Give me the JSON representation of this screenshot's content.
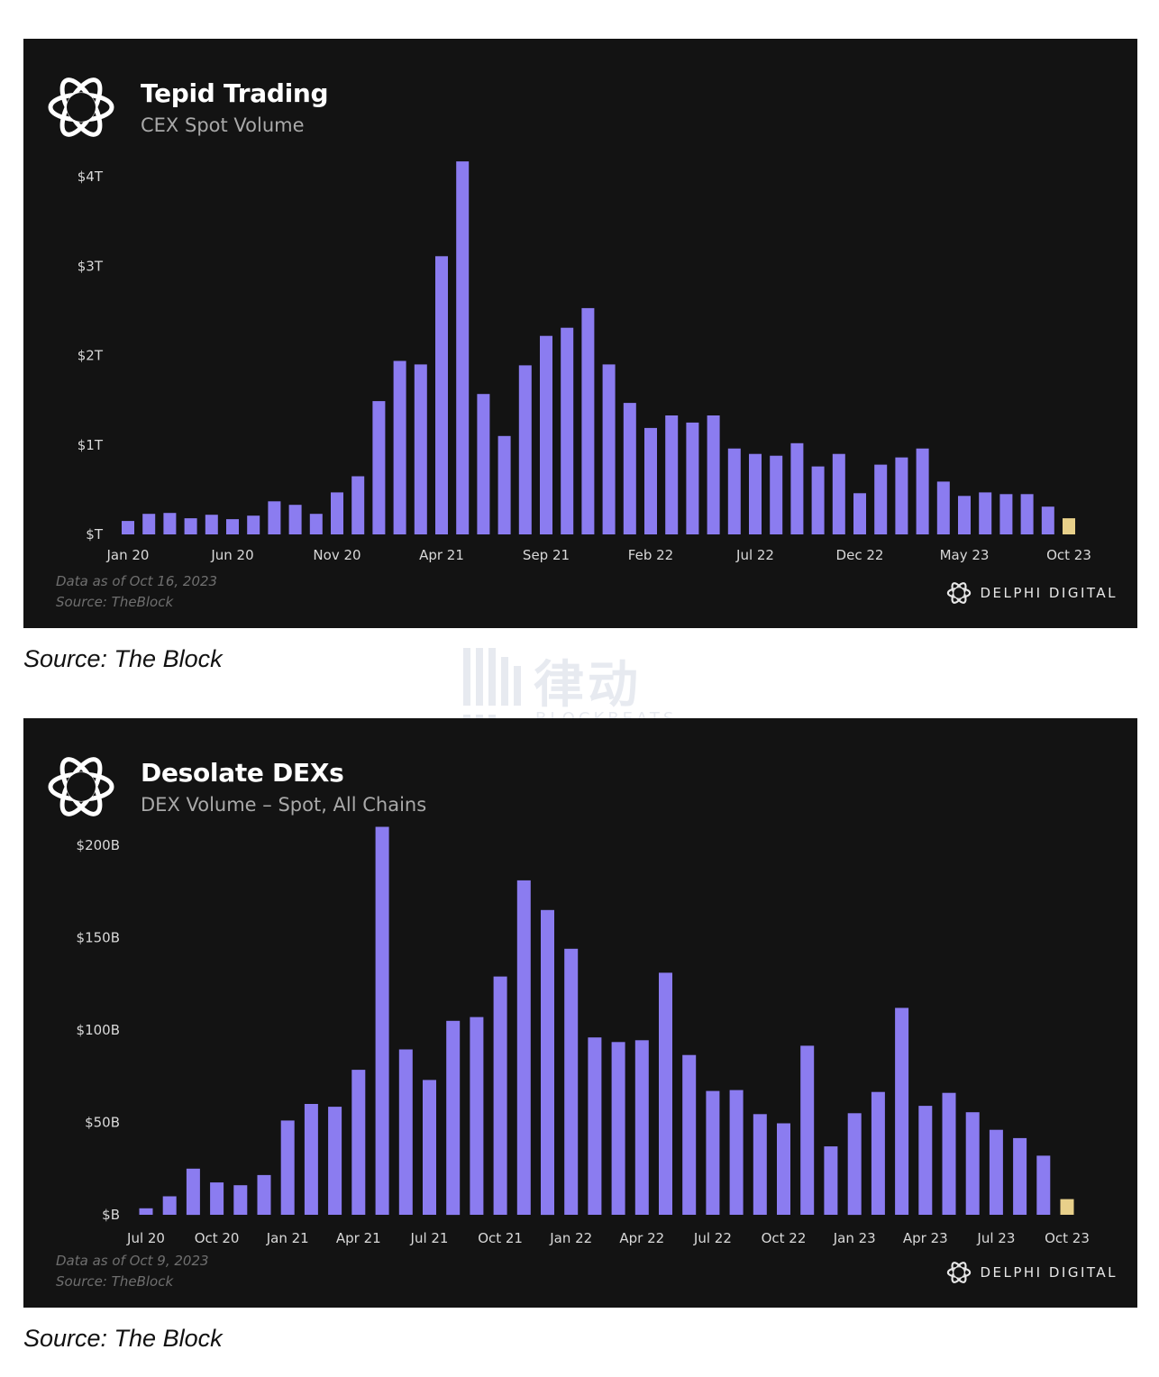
{
  "colors": {
    "bar": "#8b7cf0",
    "latest": "#e8d08a",
    "panel": "#131313"
  },
  "watermark": {
    "cn": "律动",
    "en": "BLOCKBEATS"
  },
  "brand": {
    "name": "DELPHI DIGITAL",
    "icon": "delphi-logo-icon"
  },
  "charts": [
    {
      "title": "Tepid Trading",
      "subtitle": "CEX Spot Volume",
      "note_line1": "Data as of Oct 16, 2023",
      "note_line2": "Source: TheBlock",
      "caption": "Source: The Block"
    },
    {
      "title": "Desolate DEXs",
      "subtitle": "DEX Volume – Spot, All Chains",
      "note_line1": "Data as of Oct 9, 2023",
      "note_line2": "Source: TheBlock",
      "caption": "Source: The Block"
    }
  ],
  "chart_data": [
    {
      "type": "bar",
      "title": "Tepid Trading",
      "subtitle": "CEX Spot Volume",
      "unit": "$T",
      "ylim": [
        0,
        4
      ],
      "y_ticks": [
        {
          "value": 0,
          "label": "$T"
        },
        {
          "value": 1,
          "label": "$1T"
        },
        {
          "value": 2,
          "label": "$2T"
        },
        {
          "value": 3,
          "label": "$3T"
        },
        {
          "value": 4,
          "label": "$4T"
        }
      ],
      "x_tick_labels": [
        "Jan 20",
        "Jun 20",
        "Nov 20",
        "Apr 21",
        "Sep 21",
        "Feb 22",
        "Jul 22",
        "Dec 22",
        "May 23",
        "Oct 23"
      ],
      "categories": [
        "Jan 20",
        "Feb 20",
        "Mar 20",
        "Apr 20",
        "May 20",
        "Jun 20",
        "Jul 20",
        "Aug 20",
        "Sep 20",
        "Oct 20",
        "Nov 20",
        "Dec 20",
        "Jan 21",
        "Feb 21",
        "Mar 21",
        "Apr 21",
        "May 21",
        "Jun 21",
        "Jul 21",
        "Aug 21",
        "Sep 21",
        "Oct 21",
        "Nov 21",
        "Dec 21",
        "Jan 22",
        "Feb 22",
        "Mar 22",
        "Apr 22",
        "May 22",
        "Jun 22",
        "Jul 22",
        "Aug 22",
        "Sep 22",
        "Oct 22",
        "Nov 22",
        "Dec 22",
        "Jan 23",
        "Feb 23",
        "Mar 23",
        "Apr 23",
        "May 23",
        "Jun 23",
        "Jul 23",
        "Aug 23",
        "Sep 23",
        "Oct 23"
      ],
      "values": [
        0.15,
        0.23,
        0.24,
        0.18,
        0.22,
        0.17,
        0.21,
        0.37,
        0.33,
        0.23,
        0.47,
        0.65,
        1.49,
        1.94,
        1.9,
        3.11,
        4.17,
        1.57,
        1.1,
        1.89,
        2.22,
        2.31,
        2.53,
        1.9,
        1.47,
        1.19,
        1.33,
        1.25,
        1.33,
        0.96,
        0.9,
        0.88,
        1.02,
        0.76,
        0.9,
        0.46,
        0.78,
        0.86,
        0.96,
        0.59,
        0.43,
        0.47,
        0.45,
        0.45,
        0.31,
        0.18
      ],
      "highlight_last": true
    },
    {
      "type": "bar",
      "title": "Desolate DEXs",
      "subtitle": "DEX Volume – Spot, All Chains",
      "unit": "$B",
      "ylim": [
        0,
        200
      ],
      "y_ticks": [
        {
          "value": 0,
          "label": "$B"
        },
        {
          "value": 50,
          "label": "$50B"
        },
        {
          "value": 100,
          "label": "$100B"
        },
        {
          "value": 150,
          "label": "$150B"
        },
        {
          "value": 200,
          "label": "$200B"
        }
      ],
      "x_tick_labels": [
        "Jul 20",
        "Oct 20",
        "Jan 21",
        "Apr 21",
        "Jul 21",
        "Oct 21",
        "Jan 22",
        "Apr 22",
        "Jul 22",
        "Oct 22",
        "Jan 23",
        "Apr 23",
        "Jul 23",
        "Oct 23"
      ],
      "categories": [
        "Jul 20",
        "Aug 20",
        "Sep 20",
        "Oct 20",
        "Nov 20",
        "Dec 20",
        "Jan 21",
        "Feb 21",
        "Mar 21",
        "Apr 21",
        "May 21",
        "Jun 21",
        "Jul 21",
        "Aug 21",
        "Sep 21",
        "Oct 21",
        "Nov 21",
        "Dec 21",
        "Jan 22",
        "Feb 22",
        "Mar 22",
        "Apr 22",
        "May 22",
        "Jun 22",
        "Jul 22",
        "Aug 22",
        "Sep 22",
        "Oct 22",
        "Nov 22",
        "Dec 22",
        "Jan 23",
        "Feb 23",
        "Mar 23",
        "Apr 23",
        "May 23",
        "Jun 23",
        "Jul 23",
        "Aug 23",
        "Sep 23",
        "Oct 23"
      ],
      "values": [
        3.5,
        10,
        25,
        17.5,
        16,
        21.5,
        51,
        60,
        58.5,
        78.5,
        210,
        89.5,
        73,
        105,
        107,
        129,
        181,
        165,
        144,
        96,
        93.5,
        94.5,
        131,
        86.5,
        67,
        67.5,
        54.5,
        49.5,
        91.5,
        37,
        55,
        66.5,
        112,
        59,
        66,
        55.5,
        46,
        41.5,
        32,
        8.5
      ],
      "highlight_last": true
    }
  ]
}
